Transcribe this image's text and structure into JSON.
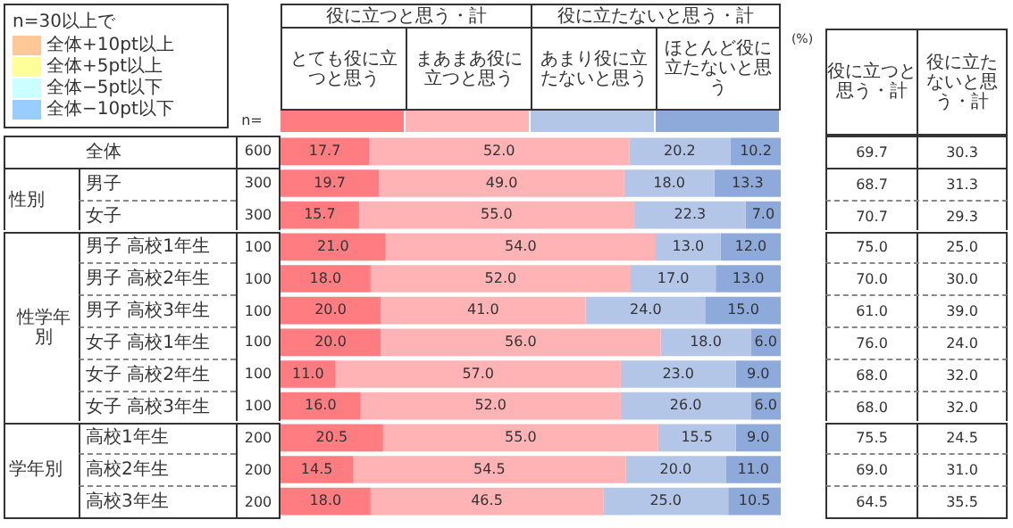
{
  "chart_data": {
    "type": "bar",
    "orientation": "horizontal",
    "stacked": true,
    "categories": [
      "全体",
      "男子",
      "女子",
      "男子 高校1年生",
      "男子 高校2年生",
      "男子 高校3年生",
      "女子 高校1年生",
      "女子 高校2年生",
      "女子 高校3年生",
      "高校1年生",
      "高校2年生",
      "高校3年生"
    ],
    "series": [
      {
        "name": "とても役に立つと思う",
        "color": "#ff7c80",
        "values": [
          17.7,
          19.7,
          15.7,
          21.0,
          18.0,
          20.0,
          20.0,
          11.0,
          16.0,
          20.5,
          14.5,
          18.0
        ],
        "value_labels": [
          "17.7",
          "19.7",
          "15.7",
          "21.0",
          "18.0",
          "20.0",
          "20.0",
          "11.0",
          "16.0",
          "20.5",
          "14.5",
          "18.0"
        ]
      },
      {
        "name": "まあまあ役に立つと思う",
        "color": "#ffb3b5",
        "values": [
          52.0,
          49.0,
          55.0,
          54.0,
          52.0,
          41.0,
          56.0,
          57.0,
          52.0,
          55.0,
          54.5,
          46.5
        ],
        "value_labels": [
          "52.0",
          "49.0",
          "55.0",
          "54.0",
          "52.0",
          "41.0",
          "56.0",
          "57.0",
          "52.0",
          "55.0",
          "54.5",
          "46.5"
        ]
      },
      {
        "name": "あまり役に立たないと思う",
        "color": "#b4c6e7",
        "values": [
          20.2,
          18.0,
          22.3,
          13.0,
          17.0,
          24.0,
          18.0,
          23.0,
          26.0,
          15.5,
          20.0,
          25.0
        ],
        "value_labels": [
          "20.2",
          "18.0",
          "22.3",
          "13.0",
          "17.0",
          "24.0",
          "18.0",
          "23.0",
          "26.0",
          "15.5",
          "20.0",
          "25.0"
        ]
      },
      {
        "name": "ほとんど役に立たないと思う",
        "color": "#8eaadb",
        "values": [
          10.2,
          13.3,
          7.0,
          12.0,
          13.0,
          15.0,
          6.0,
          9.0,
          6.0,
          9.0,
          11.0,
          10.5
        ],
        "value_labels": [
          "10.2",
          "13.3",
          "7.0",
          "12.0",
          "13.0",
          "15.0",
          "6.0",
          "9.0",
          "6.0",
          "9.0",
          "11.0",
          "10.5"
        ]
      }
    ],
    "xlim": [
      0,
      100
    ],
    "tick_labels": false,
    "legend": "top",
    "legend_title": "n=30以上で",
    "annotations": [
      "役に立つと思う・計",
      "役に立たないと思う・計",
      "(%)",
      "n=",
      "役に立つと思う・計",
      "役に立たないと思う・計",
      "全体+10pt以上",
      "全体+5pt以上",
      "全体−5pt以下",
      "全体−10pt以下",
      "性別",
      "性学年別",
      "学年別",
      "600",
      "300",
      "300",
      "100",
      "100",
      "100",
      "100",
      "100",
      "100",
      "200",
      "200",
      "200"
    ],
    "totals": [
      [
        "69.7",
        "30.3"
      ],
      [
        "68.7",
        "31.3"
      ],
      [
        "70.7",
        "29.3"
      ],
      [
        "75.0",
        "25.0"
      ],
      [
        "70.0",
        "30.0"
      ],
      [
        "61.0",
        "39.0"
      ],
      [
        "76.0",
        "24.0"
      ],
      [
        "68.0",
        "32.0"
      ],
      [
        "68.0",
        "32.0"
      ],
      [
        "75.5",
        "24.5"
      ],
      [
        "69.0",
        "31.0"
      ],
      [
        "64.5",
        "35.5"
      ]
    ]
  }
}
